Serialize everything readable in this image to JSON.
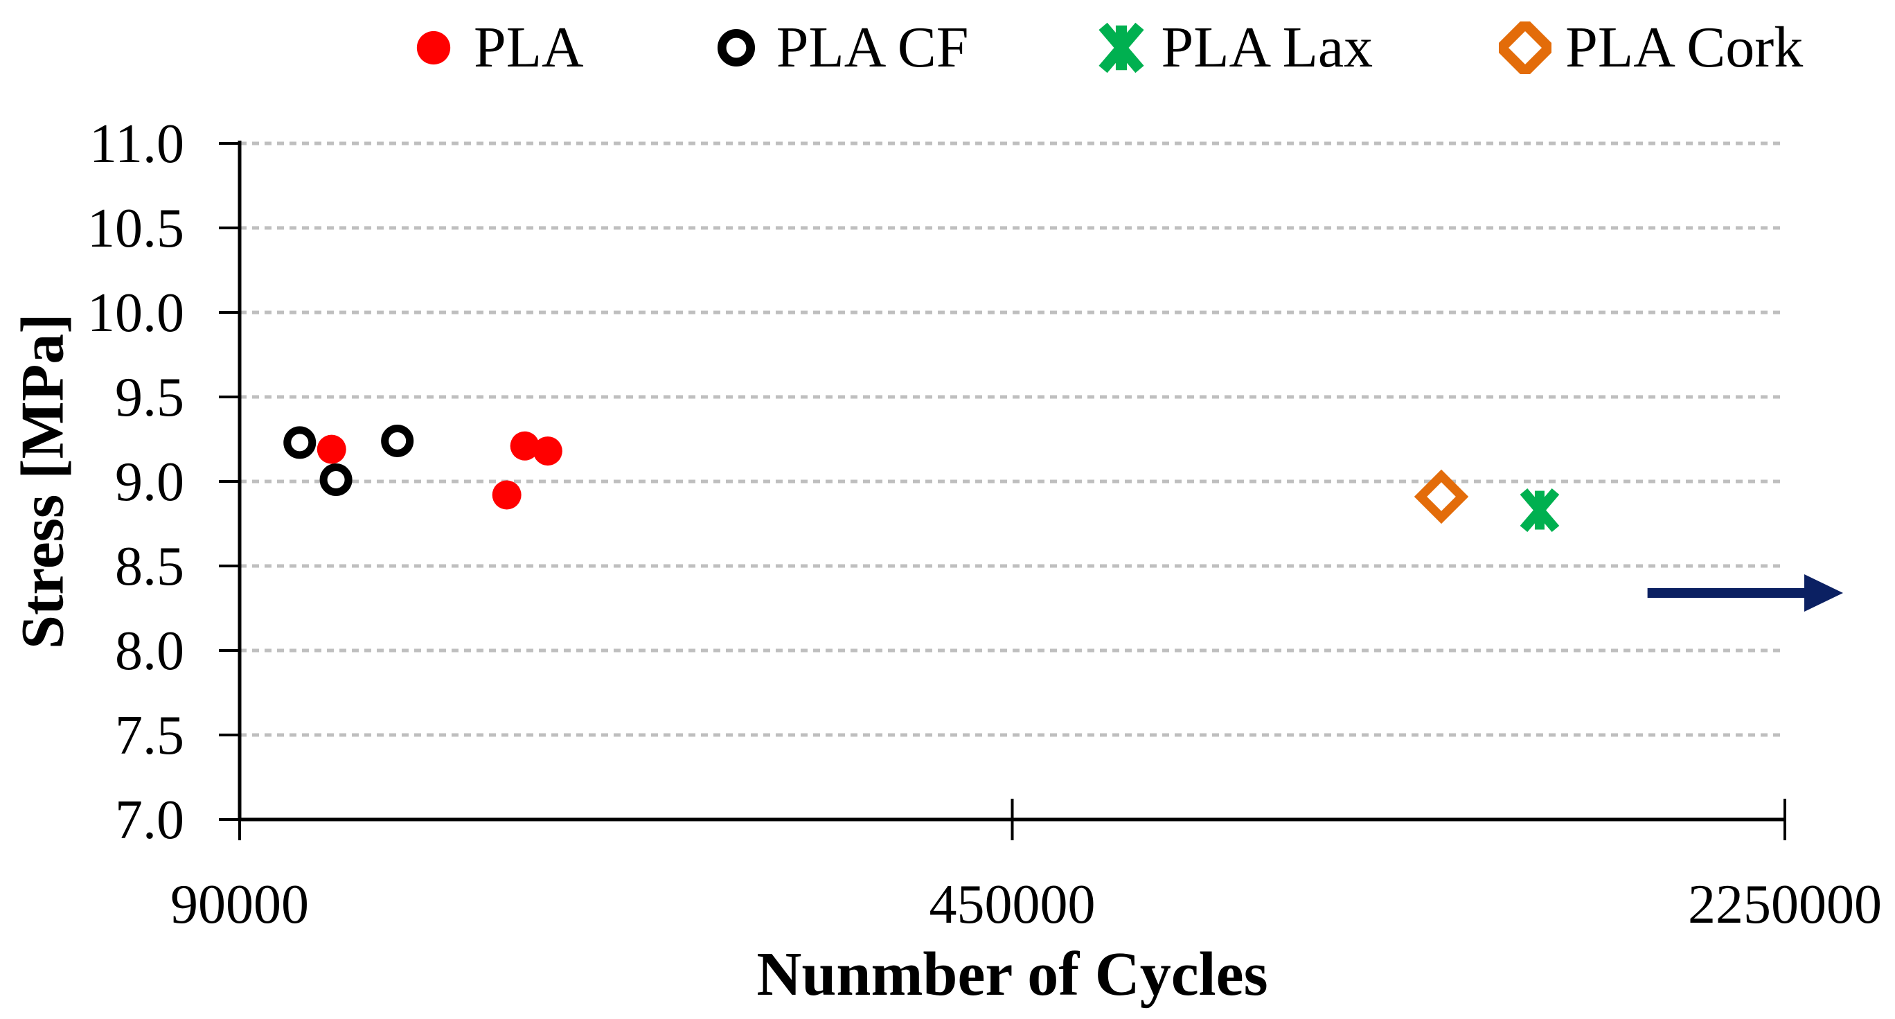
{
  "chart_data": {
    "type": "scatter",
    "title": "",
    "xlabel": "Nunmber of Cycles",
    "ylabel": "Stress [MPa]",
    "x_axis": {
      "scale": "log",
      "min": 90000,
      "max": 2250000,
      "ticks": [
        90000,
        450000,
        2250000
      ],
      "tick_labels": [
        "90000",
        "450000",
        "2250000"
      ]
    },
    "y_axis": {
      "min": 7.0,
      "max": 11.0,
      "step": 0.5,
      "tick_labels": [
        "11.0",
        "10.5",
        "10.0",
        "9.5",
        "9.0",
        "8.5",
        "8.0",
        "7.5",
        "7.0"
      ]
    },
    "grid": {
      "show": true,
      "color": "#BFBFBF",
      "style": "dashed",
      "interval": 0.5
    },
    "legend_position": "top",
    "axis_color": "#000000",
    "series": [
      {
        "name": "PLA",
        "marker": "filled-circle",
        "color": "#FF0000",
        "points": [
          {
            "cycles": 109000,
            "stress": 9.19
          },
          {
            "cycles": 157000,
            "stress": 8.92
          },
          {
            "cycles": 163000,
            "stress": 9.21
          },
          {
            "cycles": 171000,
            "stress": 9.18
          }
        ]
      },
      {
        "name": "PLA CF",
        "marker": "open-circle",
        "color": "#000000",
        "points": [
          {
            "cycles": 102000,
            "stress": 9.23
          },
          {
            "cycles": 110000,
            "stress": 9.01
          },
          {
            "cycles": 125000,
            "stress": 9.24
          }
        ]
      },
      {
        "name": "PLA Lax",
        "marker": "asterisk",
        "color": "#00B050",
        "points": [
          {
            "cycles": 1350000,
            "stress": 8.83
          }
        ]
      },
      {
        "name": "PLA Cork",
        "marker": "open-diamond",
        "color": "#E36C0A",
        "points": [
          {
            "cycles": 1100000,
            "stress": 8.91
          }
        ]
      }
    ],
    "annotations": [
      {
        "type": "arrow-right",
        "color": "#0B2062",
        "from": {
          "cycles": 1690000,
          "stress": 8.34
        },
        "to": {
          "cycles": 2540000,
          "stress": 8.34
        }
      }
    ]
  }
}
